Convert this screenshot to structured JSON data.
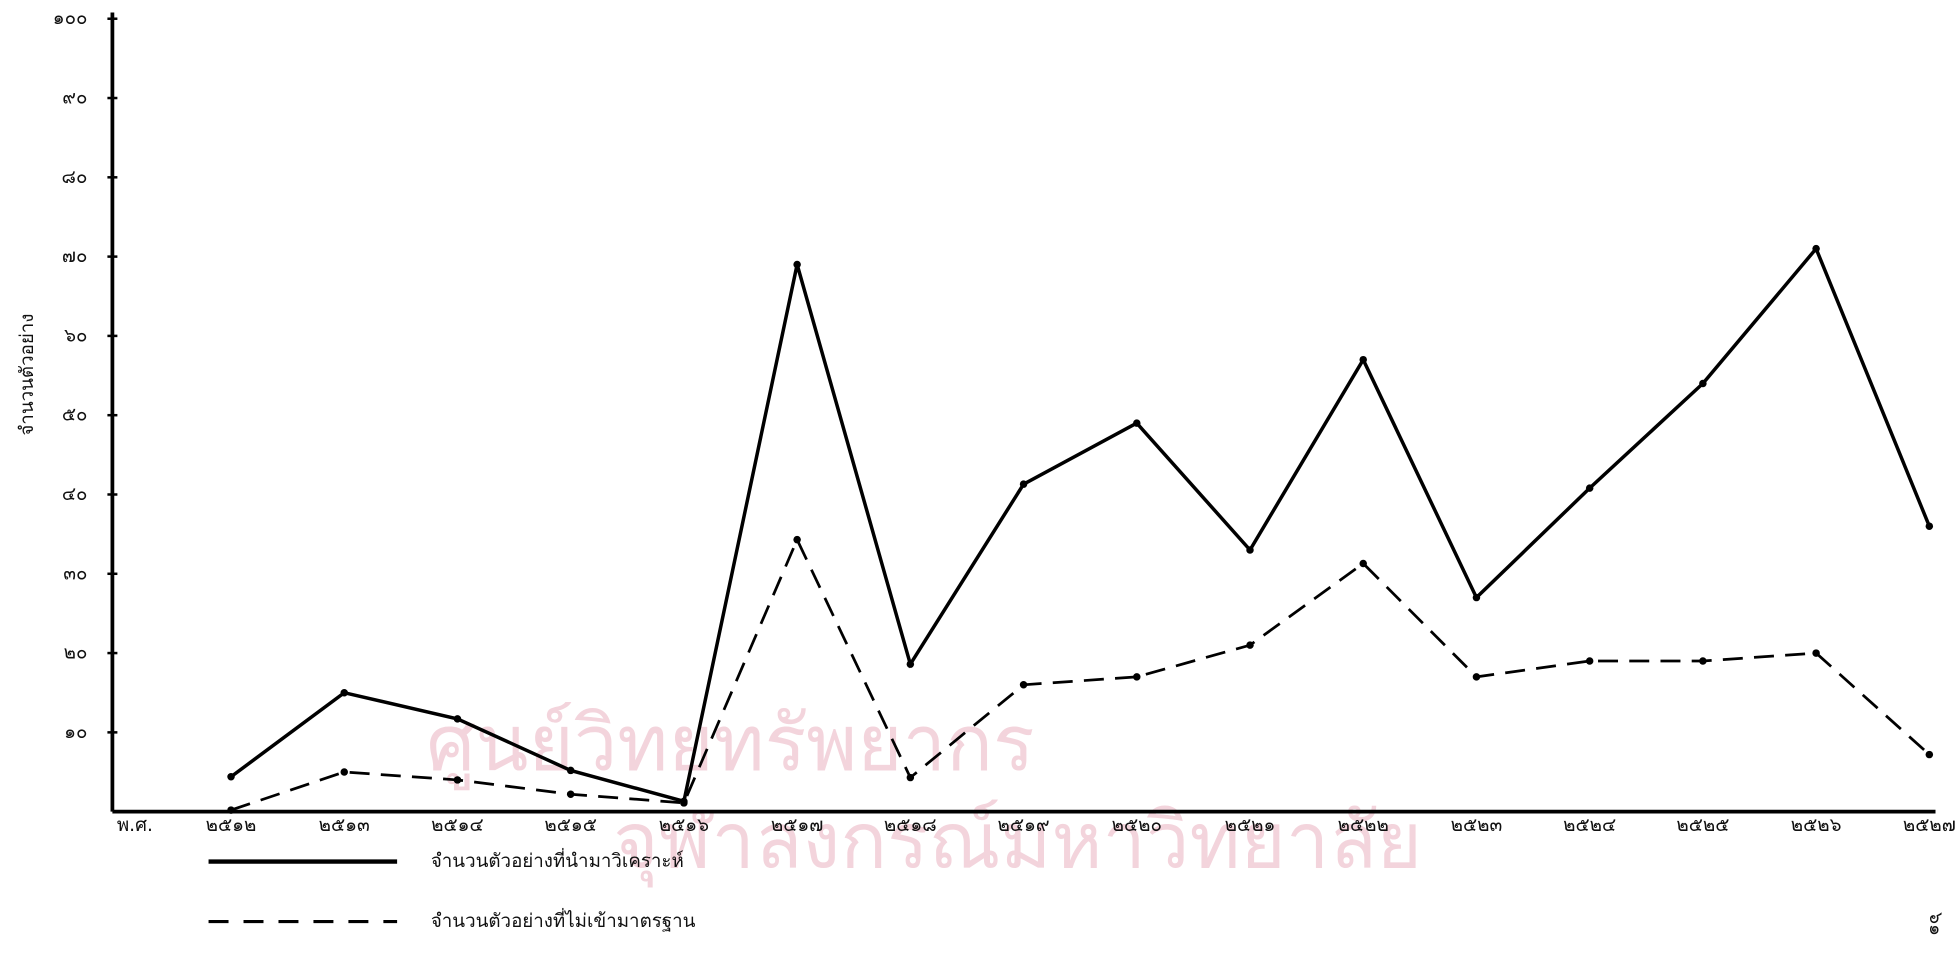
{
  "chart_data": {
    "type": "line",
    "ylabel": "จำนวนตัวอย่าง",
    "xlabel": "พ.ศ.",
    "categories": [
      "๒๕๑๒",
      "๒๕๑๓",
      "๒๕๑๔",
      "๒๕๑๕",
      "๒๕๑๖",
      "๒๕๑๗",
      "๒๕๑๘",
      "๒๕๑๙",
      "๒๕๒๐",
      "๒๕๒๑",
      "๒๕๒๒",
      "๒๕๒๓",
      "๒๕๒๔",
      "๒๕๒๕",
      "๒๕๒๖",
      "๒๕๒๗"
    ],
    "series": [
      {
        "name": "จำนวนตัวอย่างที่นำมาวิเคราะห์",
        "color": "#000000",
        "dash": "solid",
        "values": [
          4.4,
          15,
          11.7,
          5.2,
          1.3,
          69,
          18.6,
          41.3,
          49,
          33,
          57,
          27,
          40.8,
          54,
          71,
          36
        ]
      },
      {
        "name": "จำนวนตัวอย่างที่ไม่เข้ามาตรฐาน",
        "color": "#000000",
        "dash": "dashed",
        "values": [
          0.2,
          5,
          4,
          2.2,
          1.1,
          34.3,
          4.3,
          16,
          17,
          21,
          31.3,
          17,
          19,
          19,
          20,
          7.2
        ]
      }
    ],
    "ylim": [
      0,
      100
    ],
    "yticks": [
      {
        "value": 10,
        "label": "๑๐"
      },
      {
        "value": 20,
        "label": "๒๐"
      },
      {
        "value": 30,
        "label": "๓๐"
      },
      {
        "value": 40,
        "label": "๔๐"
      },
      {
        "value": 50,
        "label": "๕๐"
      },
      {
        "value": 60,
        "label": "๖๐"
      },
      {
        "value": 70,
        "label": "๗๐"
      },
      {
        "value": 80,
        "label": "๘๐"
      },
      {
        "value": 90,
        "label": "๙๐"
      },
      {
        "value": 100,
        "label": "๑๐๐"
      }
    ],
    "grid": false
  },
  "watermark": [
    "ศูนย์วิทยทรัพยากร",
    "จุฬาลงกรณ์มหาวิทยาลัย"
  ],
  "page_number": "๖๑"
}
